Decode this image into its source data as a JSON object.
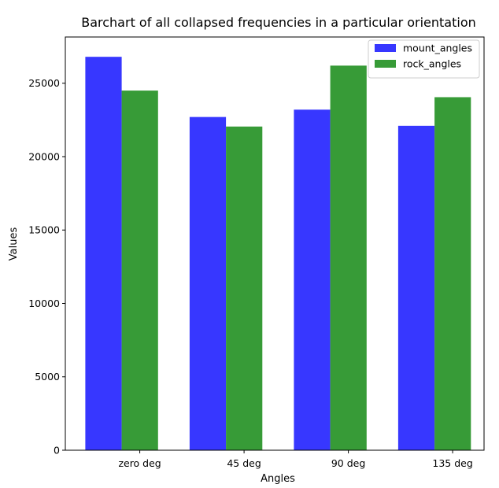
{
  "chart_data": {
    "type": "bar",
    "title": "Barchart of all collapsed frequencies in a particular orientation",
    "xlabel": "Angles",
    "ylabel": "Values",
    "categories": [
      "zero deg",
      "45 deg",
      "90 deg",
      "135 deg"
    ],
    "series": [
      {
        "name": "mount_angles",
        "color": "#3333ff",
        "values": [
          26800,
          22700,
          23200,
          22100
        ]
      },
      {
        "name": "rock_angles",
        "color": "#339933",
        "values": [
          24500,
          22050,
          26200,
          24050
        ]
      }
    ],
    "ylim": [
      0,
      28150
    ],
    "yticks": [
      0,
      5000,
      10000,
      15000,
      20000,
      25000
    ],
    "legend_position": "top-right",
    "grid": false
  }
}
